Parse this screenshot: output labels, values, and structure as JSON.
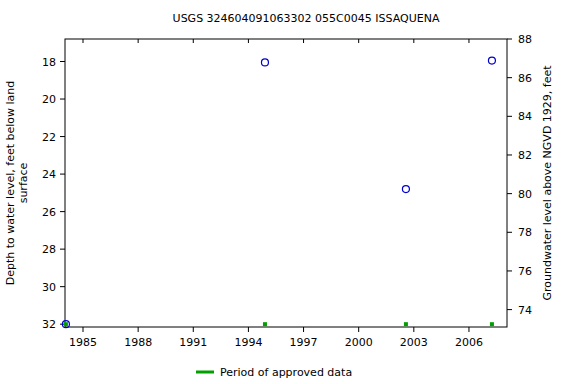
{
  "chart_data": {
    "type": "scatter",
    "title": "USGS 324604091063302 055C0045  ISSAQUENA",
    "ylabel": [
      "Depth to water level, feet below land",
      "surface"
    ],
    "y2label": "Groundwater level above NGVD 1929, feet",
    "x": [
      1984.07,
      1994.9,
      2002.57,
      2007.25
    ],
    "series": [
      {
        "color": "#0000cc",
        "marker": "circle",
        "values": [
          32.0,
          18.05,
          24.8,
          17.95
        ]
      },
      {
        "name": "Period of approved data",
        "color": "#00a000",
        "marker": "square",
        "values": [
          32.0,
          32.0,
          32.0,
          32.0
        ]
      }
    ],
    "xlim": [
      1984.02,
      2008.07
    ],
    "xticks": [
      1985,
      1988,
      1991,
      1994,
      1997,
      2000,
      2003,
      2006
    ],
    "ylim": [
      32.15,
      16.8
    ],
    "yticks": [
      18,
      20,
      22,
      24,
      26,
      28,
      30,
      32
    ],
    "y2lim": [
      73.1,
      88.0
    ],
    "y2ticks": [
      74,
      76,
      78,
      80,
      82,
      84,
      86,
      88
    ],
    "grid": false,
    "legend": "bottom"
  }
}
